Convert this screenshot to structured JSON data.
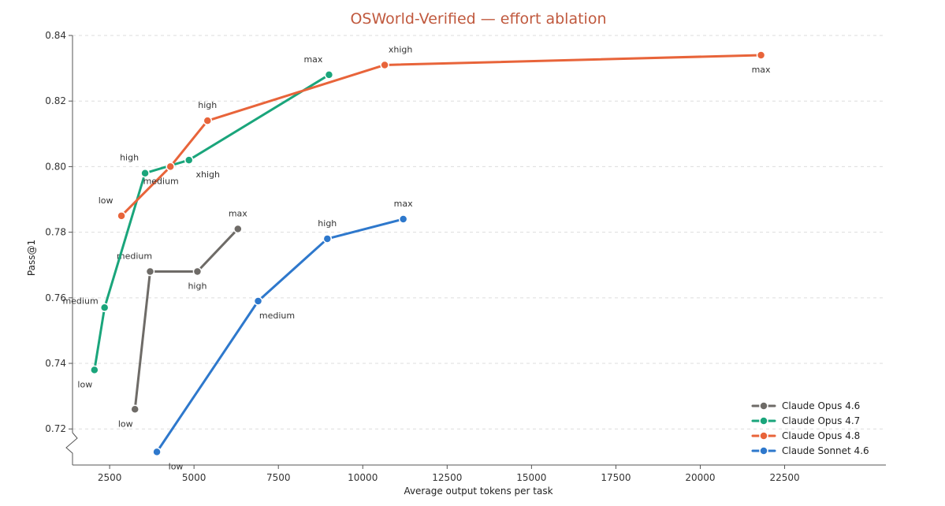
{
  "chart_data": {
    "type": "line",
    "title": "OSWorld-Verified — effort ablation",
    "xlabel": "Average output tokens per task",
    "ylabel": "Pass@1",
    "xlim": [
      1400,
      25500
    ],
    "ylim": [
      0.709,
      0.84
    ],
    "x_ticks": [
      2500,
      5000,
      7500,
      10000,
      12500,
      15000,
      17500,
      20000,
      22500
    ],
    "y_ticks": [
      0.72,
      0.74,
      0.76,
      0.78,
      0.8,
      0.82,
      0.84
    ],
    "x_tick_labels": [
      "2500",
      "5000",
      "7500",
      "10000",
      "12500",
      "15000",
      "17500",
      "20000",
      "22500"
    ],
    "y_tick_labels": [
      "0.72",
      "0.74",
      "0.76",
      "0.78",
      "0.80",
      "0.82",
      "0.84"
    ],
    "grid": "horizontal dashed",
    "axis_break": "y",
    "legend_position": "bottom-right",
    "title_color": "#c0593e",
    "series": [
      {
        "name": "Claude Opus 4.6",
        "color": "#6e6b67",
        "points": [
          {
            "x": 3250,
            "y": 0.726,
            "label": "low",
            "label_pos": "below-left"
          },
          {
            "x": 3700,
            "y": 0.768,
            "label": "medium",
            "label_pos": "above-left"
          },
          {
            "x": 5100,
            "y": 0.768,
            "label": "high",
            "label_pos": "below"
          },
          {
            "x": 6300,
            "y": 0.781,
            "label": "max",
            "label_pos": "above"
          }
        ]
      },
      {
        "name": "Claude Opus 4.7",
        "color": "#1aa57b",
        "points": [
          {
            "x": 2050,
            "y": 0.738,
            "label": "low",
            "label_pos": "below-left"
          },
          {
            "x": 2350,
            "y": 0.757,
            "label": "medium",
            "label_pos": "left"
          },
          {
            "x": 3550,
            "y": 0.798,
            "label": "high",
            "label_pos": "above-left"
          },
          {
            "x": 4850,
            "y": 0.802,
            "label": "xhigh",
            "label_pos": "below-right"
          },
          {
            "x": 9000,
            "y": 0.828,
            "label": "max",
            "label_pos": "above-left"
          }
        ]
      },
      {
        "name": "Claude Opus 4.8",
        "color": "#e8643a",
        "points": [
          {
            "x": 2850,
            "y": 0.785,
            "label": "low",
            "label_pos": "above-left"
          },
          {
            "x": 4300,
            "y": 0.8,
            "label": "medium",
            "label_pos": "below-left"
          },
          {
            "x": 5400,
            "y": 0.814,
            "label": "high",
            "label_pos": "above"
          },
          {
            "x": 10650,
            "y": 0.831,
            "label": "xhigh",
            "label_pos": "above-right"
          },
          {
            "x": 21800,
            "y": 0.834,
            "label": "max",
            "label_pos": "below"
          }
        ]
      },
      {
        "name": "Claude Sonnet 4.6",
        "color": "#2e78cc",
        "points": [
          {
            "x": 3900,
            "y": 0.713,
            "label": "low",
            "label_pos": "below-right"
          },
          {
            "x": 6900,
            "y": 0.759,
            "label": "medium",
            "label_pos": "below-right"
          },
          {
            "x": 8950,
            "y": 0.778,
            "label": "high",
            "label_pos": "above"
          },
          {
            "x": 11200,
            "y": 0.784,
            "label": "max",
            "label_pos": "above"
          }
        ]
      }
    ]
  }
}
